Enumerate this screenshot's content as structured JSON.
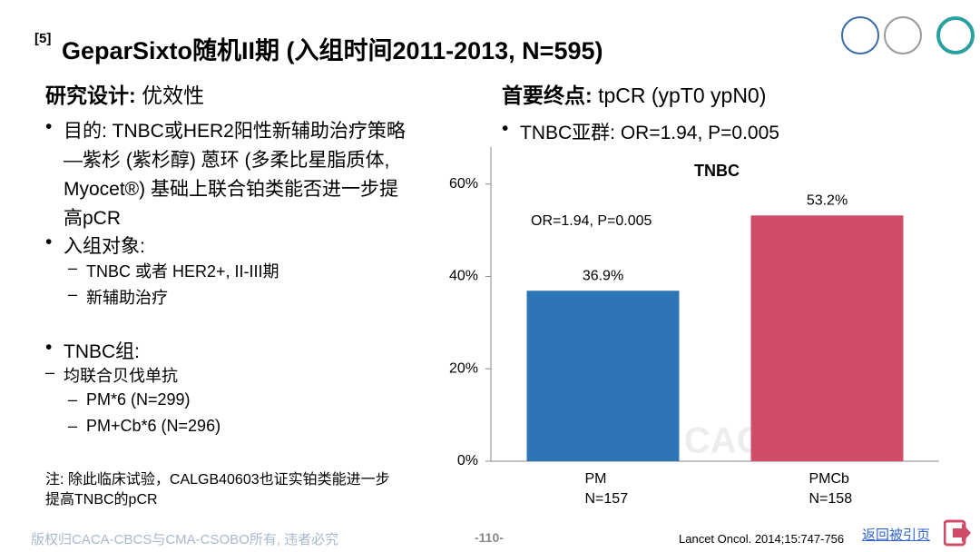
{
  "slide": {
    "title_ref": "[5]",
    "title": "GeparSixto随机II期 (入组时间2011-2013, N=595)",
    "left": {
      "heading_label": "研究设计:",
      "heading_text": "优效性",
      "bullets": [
        {
          "lines": [
            "目的: TNBC或HER2阳性新辅助治疗策略",
            "—紫杉 (紫杉醇) 蒽环 (多柔比星脂质体,",
            "Myocet®) 基础上联合铂类能否进一步提",
            "高pCR"
          ]
        },
        {
          "lines": [
            "入组对象:"
          ],
          "sub": [
            "TNBC 或者 HER2+, II-III期",
            "新辅助治疗"
          ]
        },
        {
          "lines": [
            "TNBC组:",
            "均联合贝伐单抗"
          ],
          "sub": [
            "PM*6 (N=299)",
            "PM+Cb*6 (N=296)"
          ]
        }
      ],
      "note": [
        "注: 除此临床试验，CALGB40603也证实铂类能进一步",
        "提高TNBC的pCR"
      ]
    },
    "right": {
      "heading_label": "首要终点:",
      "heading_text": "tpCR (ypT0 ypN0)",
      "bullet": "TNBC亚群: OR=1.94, P=0.005"
    },
    "footer": {
      "copyright": "版权归CACA-CBCS与CMA-CSOBO所有, 违者必究",
      "page": "-110-",
      "reference": "Lancet Oncol. 2014;15:747-756",
      "back_link": "返回被引页"
    }
  },
  "chart_data": {
    "type": "bar",
    "title": "TNBC",
    "annotation": "OR=1.94, P=0.005",
    "watermark": "CACA-CBCS",
    "categories": [
      "PM",
      "PMCb"
    ],
    "category_notes": [
      "N=157",
      "N=158"
    ],
    "values": [
      36.9,
      53.2
    ],
    "value_labels": [
      "36.9%",
      "53.2%"
    ],
    "colors": [
      "#2e75b6",
      "#d04b68"
    ],
    "ylim": [
      0,
      68
    ],
    "yticks": [
      {
        "value": 0,
        "label": "0%"
      },
      {
        "value": 20,
        "label": "20%"
      },
      {
        "value": 40,
        "label": "40%"
      },
      {
        "value": 60,
        "label": "60%"
      }
    ],
    "grid": false
  }
}
